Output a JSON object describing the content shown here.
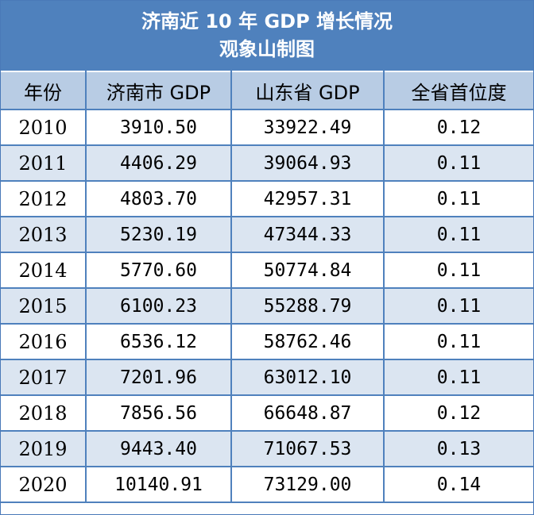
{
  "title": {
    "line1": "济南近 10 年 GDP 增长情况",
    "line2": "观象山制图"
  },
  "columns": [
    "年份",
    "济南市 GDP",
    "山东省 GDP",
    "全省首位度"
  ],
  "rows": [
    [
      "2010",
      "3910.50",
      "33922.49",
      "0.12"
    ],
    [
      "2011",
      "4406.29",
      "39064.93",
      "0.11"
    ],
    [
      "2012",
      "4803.70",
      "42957.31",
      "0.11"
    ],
    [
      "2013",
      "5230.19",
      "47344.33",
      "0.11"
    ],
    [
      "2014",
      "5770.60",
      "50774.84",
      "0.11"
    ],
    [
      "2015",
      "6100.23",
      "55288.79",
      "0.11"
    ],
    [
      "2016",
      "6536.12",
      "58762.46",
      "0.11"
    ],
    [
      "2017",
      "7201.96",
      "63012.10",
      "0.11"
    ],
    [
      "2018",
      "7856.56",
      "66648.87",
      "0.12"
    ],
    [
      "2019",
      "9443.40",
      "71067.53",
      "0.13"
    ],
    [
      "2020",
      "10140.91",
      "73129.00",
      "0.14"
    ]
  ],
  "colors": {
    "header_band": "#4f81bd",
    "column_header_bg": "#b8cce4",
    "stripe_bg": "#dbe5f1"
  }
}
